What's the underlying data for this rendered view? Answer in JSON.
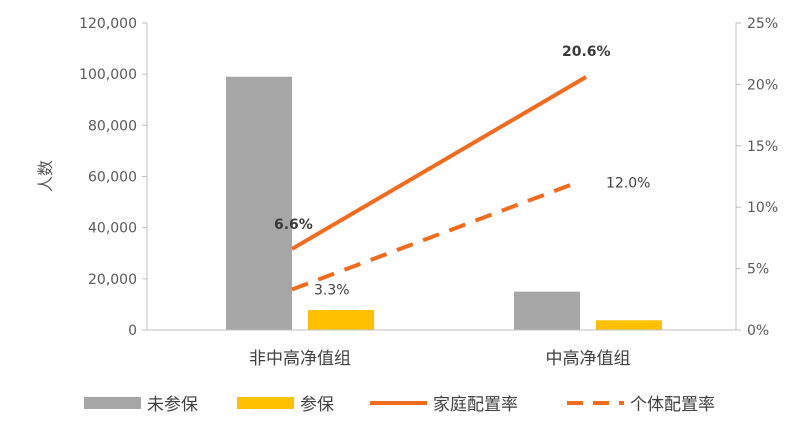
{
  "chart_data": {
    "type": "bar",
    "categories": [
      "非中高净值组",
      "中高净值组"
    ],
    "ylabel": "人数",
    "ylim": [
      0,
      120000
    ],
    "y_ticks": [
      "0",
      "20,000",
      "40,000",
      "60,000",
      "80,000",
      "100,000",
      "120,000"
    ],
    "y2lim": [
      0,
      0.25
    ],
    "y2_ticks": [
      "0%",
      "5%",
      "10%",
      "15%",
      "20%",
      "25%"
    ],
    "grid": false,
    "legend_position": "bottom",
    "series": [
      {
        "name": "未参保",
        "kind": "bar",
        "axis": "left",
        "color": "#a6a6a6",
        "values": [
          99000,
          15000
        ]
      },
      {
        "name": "参保",
        "kind": "bar",
        "axis": "left",
        "color": "#ffc000",
        "values": [
          7800,
          3800
        ]
      },
      {
        "name": "家庭配置率",
        "kind": "line",
        "style": "solid",
        "axis": "right",
        "color": "#f26b1d",
        "values": [
          0.066,
          0.206
        ],
        "labels": [
          "6.6%",
          "20.6%"
        ]
      },
      {
        "name": "个体配置率",
        "kind": "line",
        "style": "dashed",
        "axis": "right",
        "color": "#f26b1d",
        "values": [
          0.033,
          0.12
        ],
        "labels": [
          "3.3%",
          "12.0%"
        ]
      }
    ]
  }
}
